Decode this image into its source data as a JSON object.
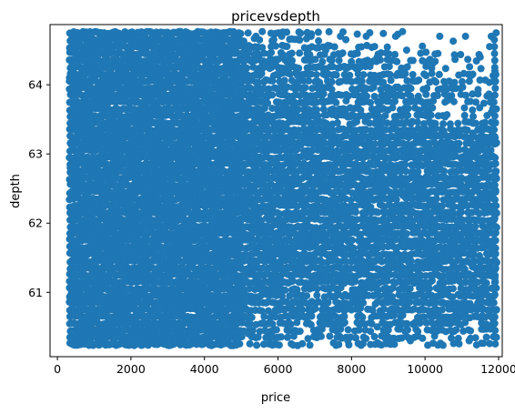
{
  "chart_data": {
    "type": "scatter",
    "title": "pricevsdepth",
    "xlabel": "price",
    "ylabel": "depth",
    "xlim": [
      -200,
      12100
    ],
    "ylim": [
      60.07,
      64.87
    ],
    "xticks": [
      0,
      2000,
      4000,
      6000,
      8000,
      10000,
      12000
    ],
    "xtick_labels": [
      "0",
      "2000",
      "4000",
      "6000",
      "8000",
      "10000",
      "12000"
    ],
    "yticks": [
      61,
      62,
      63,
      64
    ],
    "ytick_labels": [
      "61",
      "62",
      "63",
      "64"
    ],
    "grid": false,
    "legend": "none",
    "marker_color": "#1f77b4",
    "x_range": [
      326,
      11950
    ],
    "y_range": [
      60.25,
      64.75
    ],
    "y_step": 0.1,
    "points": [
      [
        400,
        64.7
      ],
      [
        600,
        64.6
      ],
      [
        900,
        64.7
      ],
      [
        1200,
        64.5
      ],
      [
        1500,
        64.7
      ],
      [
        2100,
        64.7
      ],
      [
        2600,
        64.6
      ],
      [
        3100,
        64.7
      ],
      [
        3600,
        64.5
      ],
      [
        4200,
        64.7
      ],
      [
        4800,
        64.6
      ],
      [
        5400,
        64.7
      ],
      [
        6100,
        64.7
      ],
      [
        6900,
        64.7
      ],
      [
        7700,
        64.7
      ],
      [
        8400,
        64.7
      ],
      [
        9200,
        64.7
      ],
      [
        10400,
        64.7
      ],
      [
        11100,
        64.7
      ],
      [
        11800,
        64.7
      ],
      [
        6300,
        64.3
      ],
      [
        7300,
        64.5
      ],
      [
        8700,
        64.4
      ],
      [
        9500,
        64.5
      ],
      [
        10200,
        64.3
      ],
      [
        11500,
        64.4
      ],
      [
        11900,
        64.2
      ],
      [
        9000,
        63.9
      ],
      [
        10700,
        63.8
      ],
      [
        11300,
        63.3
      ],
      [
        11800,
        63.6
      ],
      [
        10100,
        63.1
      ],
      [
        11900,
        62.7
      ],
      [
        11700,
        62.2
      ],
      [
        11600,
        61.7
      ],
      [
        11900,
        61.2
      ],
      [
        11400,
        60.8
      ],
      [
        11800,
        60.5
      ],
      [
        11200,
        60.3
      ],
      [
        10400,
        60.6
      ],
      [
        9600,
        60.3
      ],
      [
        8700,
        60.5
      ],
      [
        7900,
        60.3
      ],
      [
        7200,
        60.6
      ],
      [
        6600,
        60.8
      ],
      [
        5900,
        61.0
      ],
      [
        5200,
        60.4
      ],
      [
        4500,
        60.3
      ],
      [
        3800,
        60.6
      ],
      [
        3000,
        60.4
      ],
      [
        2200,
        60.3
      ],
      [
        1500,
        60.5
      ],
      [
        900,
        60.3
      ],
      [
        400,
        60.4
      ],
      [
        700,
        61.2
      ],
      [
        1100,
        62.0
      ],
      [
        1800,
        62.6
      ],
      [
        2500,
        63.1
      ],
      [
        3300,
        63.6
      ],
      [
        4000,
        64.0
      ],
      [
        4700,
        63.5
      ],
      [
        5500,
        62.9
      ],
      [
        6200,
        62.3
      ],
      [
        7000,
        61.8
      ],
      [
        7800,
        61.3
      ],
      [
        8600,
        61.9
      ],
      [
        9400,
        62.4
      ],
      [
        10200,
        61.6
      ],
      [
        11000,
        62.0
      ],
      [
        500,
        63.5
      ],
      [
        350,
        62.8
      ],
      [
        420,
        61.7
      ],
      [
        380,
        60.9
      ],
      [
        330,
        64.1
      ],
      [
        5100,
        64.2
      ]
    ]
  }
}
